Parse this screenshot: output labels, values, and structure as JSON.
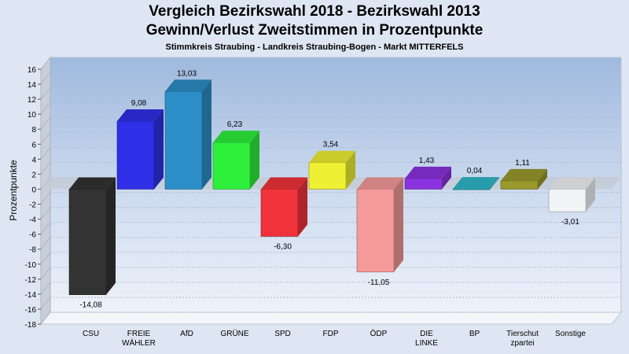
{
  "title": "Vergleich Bezirkswahl 2018 - Bezirkswahl 2013",
  "subtitle": "Gewinn/Verlust Zweitstimmen in Prozentpunkte",
  "subsubtitle": "Stimmkreis Straubing - Landkreis Straubing-Bogen - Markt MITTERFELS",
  "chart_data": {
    "type": "bar",
    "ylabel": "Prozentpunkte",
    "ylim": [
      -18,
      16
    ],
    "yticks": [
      "16",
      "14",
      "12",
      "10",
      "8",
      "6",
      "4",
      "2",
      "0",
      "-2",
      "-4",
      "-6",
      "-8",
      "-10",
      "-12",
      "-14",
      "-16",
      "-18"
    ],
    "categories": [
      [
        "CSU"
      ],
      [
        "FREIE",
        "WÄHLER"
      ],
      [
        "AfD"
      ],
      [
        "GRÜNE"
      ],
      [
        "SPD"
      ],
      [
        "FDP"
      ],
      [
        "ÖDP"
      ],
      [
        "DIE",
        "LINKE"
      ],
      [
        "BP"
      ],
      [
        "Tierschut",
        "zpartei"
      ],
      [
        "Sonstige"
      ]
    ],
    "values": [
      -14.08,
      9.08,
      13.03,
      6.23,
      -6.3,
      3.54,
      -11.05,
      1.43,
      0.04,
      1.11,
      -3.01
    ],
    "value_labels": [
      "-14,08",
      "9,08",
      "13,03",
      "6,23",
      "-6,30",
      "3,54",
      "-11,05",
      "1,43",
      "0,04",
      "1,11",
      "-3,01"
    ],
    "colors": [
      "#333333",
      "#2f2fe8",
      "#2c8fc8",
      "#2ef03c",
      "#f0333a",
      "#eef033",
      "#f59a9a",
      "#8c33e0",
      "#2fb8c8",
      "#9a9a2c",
      "#f2f4f8"
    ],
    "grid": true
  }
}
